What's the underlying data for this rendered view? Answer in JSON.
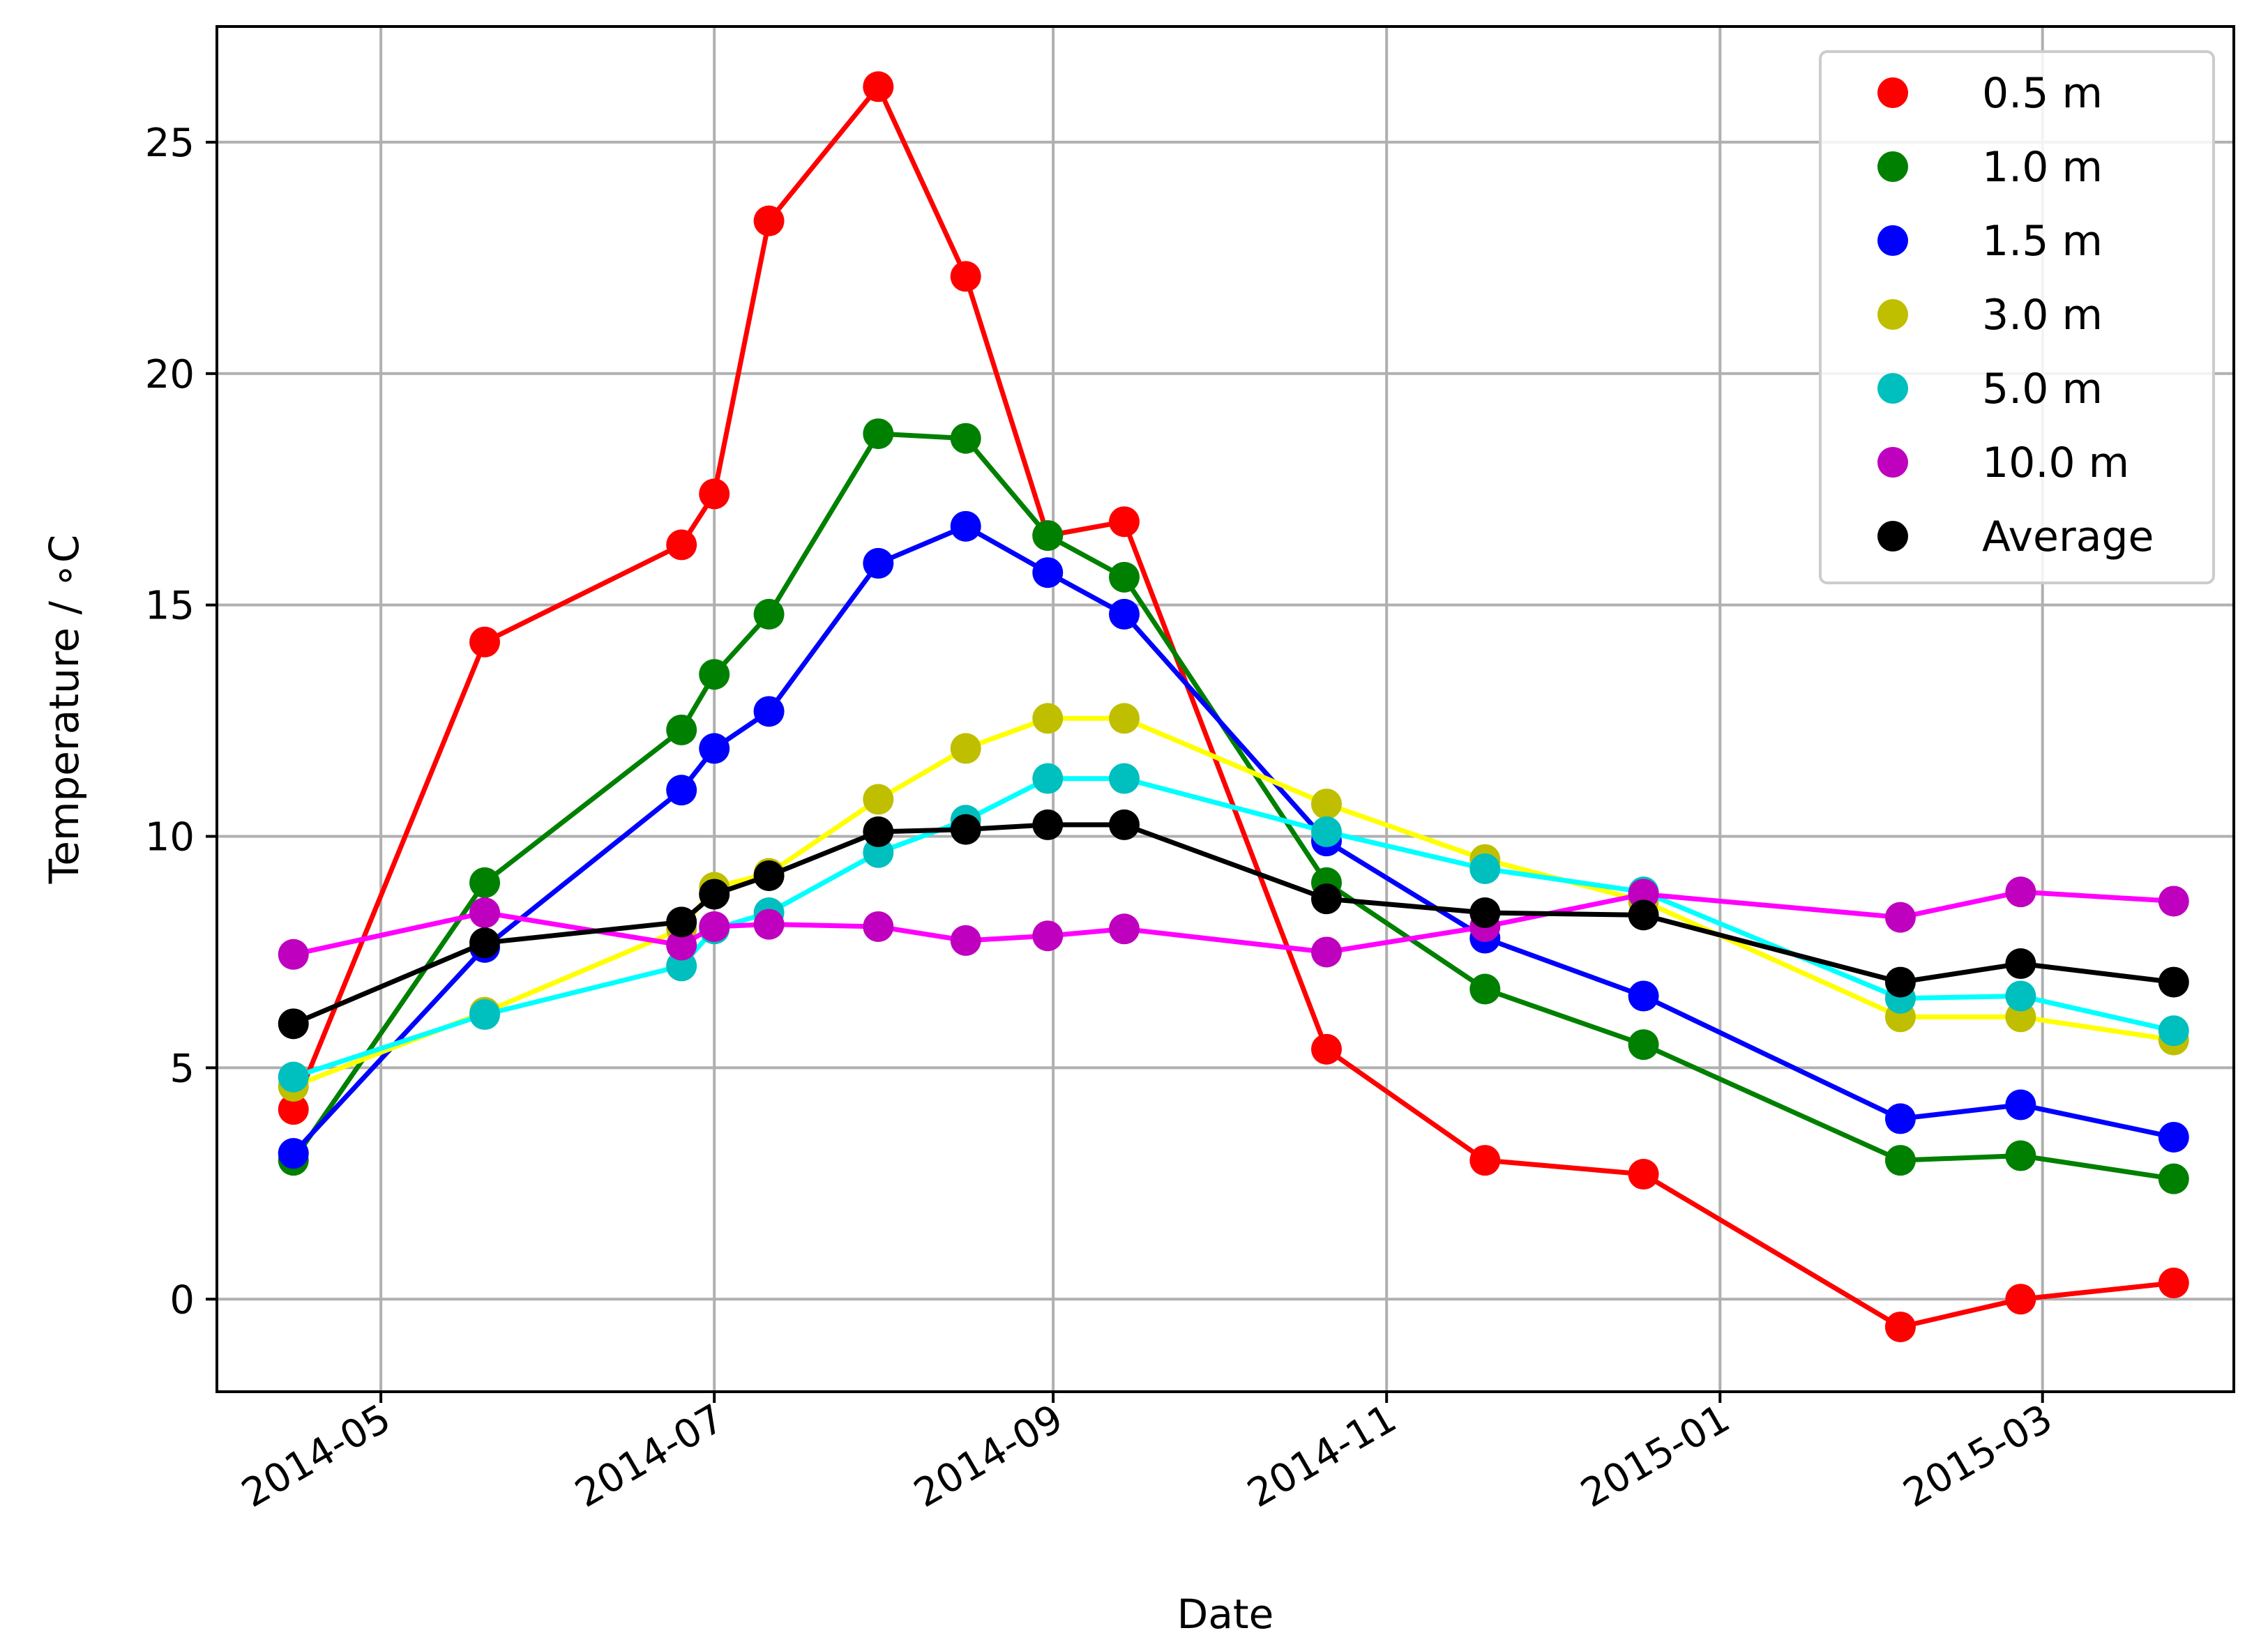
{
  "chart_data": {
    "type": "line",
    "xlabel": "Date",
    "ylabel": "Temperature / ∘C",
    "x_range": [
      "2014-04-01",
      "2015-04-05"
    ],
    "ylim": [
      -2,
      27.5
    ],
    "grid": true,
    "legend_position": "top-right",
    "x_ticks": [
      {
        "date": "2014-05-01",
        "label": "2014-05"
      },
      {
        "date": "2014-07-01",
        "label": "2014-07"
      },
      {
        "date": "2014-09-01",
        "label": "2014-09"
      },
      {
        "date": "2014-11-01",
        "label": "2014-11"
      },
      {
        "date": "2015-01-01",
        "label": "2015-01"
      },
      {
        "date": "2015-03-01",
        "label": "2015-03"
      }
    ],
    "y_ticks": [
      0,
      5,
      10,
      15,
      20,
      25
    ],
    "series": [
      {
        "name": "0.5 m",
        "marker_color": "#ff0000",
        "line_color": "#ff0000",
        "x": [
          "2014-04-15",
          "2014-05-20",
          "2014-06-25",
          "2014-07-01",
          "2014-07-11",
          "2014-07-31",
          "2014-08-16",
          "2014-08-31",
          "2014-09-14",
          "2014-10-21",
          "2014-11-19",
          "2014-12-18",
          "2015-02-03",
          "2015-02-25",
          "2015-03-25"
        ],
        "y": [
          4.1,
          14.2,
          16.3,
          17.4,
          23.3,
          26.2,
          22.1,
          16.5,
          16.8,
          5.4,
          3.0,
          2.7,
          -0.6,
          0.0,
          0.35
        ]
      },
      {
        "name": "1.0 m",
        "marker_color": "#008000",
        "line_color": "#008000",
        "x": [
          "2014-04-15",
          "2014-05-20",
          "2014-06-25",
          "2014-07-01",
          "2014-07-11",
          "2014-07-31",
          "2014-08-16",
          "2014-08-31",
          "2014-09-14",
          "2014-10-21",
          "2014-11-19",
          "2014-12-18",
          "2015-02-03",
          "2015-02-25",
          "2015-03-25"
        ],
        "y": [
          3.0,
          9.0,
          12.3,
          13.5,
          14.8,
          18.7,
          18.6,
          16.5,
          15.6,
          9.0,
          6.7,
          5.5,
          3.0,
          3.1,
          2.6
        ]
      },
      {
        "name": "1.5 m",
        "marker_color": "#0000ff",
        "line_color": "#0000ff",
        "x": [
          "2014-04-15",
          "2014-05-20",
          "2014-06-25",
          "2014-07-01",
          "2014-07-11",
          "2014-07-31",
          "2014-08-16",
          "2014-08-31",
          "2014-09-14",
          "2014-10-21",
          "2014-11-19",
          "2014-12-18",
          "2015-02-03",
          "2015-02-25",
          "2015-03-25"
        ],
        "y": [
          3.15,
          7.6,
          11.0,
          11.9,
          12.7,
          15.9,
          16.7,
          15.7,
          14.8,
          9.9,
          7.8,
          6.55,
          3.9,
          4.2,
          3.5
        ]
      },
      {
        "name": "3.0 m",
        "marker_color": "#bfbf00",
        "line_color": "#ffff00",
        "x": [
          "2014-04-15",
          "2014-05-20",
          "2014-06-25",
          "2014-07-01",
          "2014-07-11",
          "2014-07-31",
          "2014-08-16",
          "2014-08-31",
          "2014-09-14",
          "2014-10-21",
          "2014-11-19",
          "2014-12-18",
          "2015-02-03",
          "2015-02-25",
          "2015-03-25"
        ],
        "y": [
          4.6,
          6.2,
          8.0,
          8.9,
          9.2,
          10.8,
          11.9,
          12.55,
          12.55,
          10.7,
          9.5,
          8.6,
          6.1,
          6.1,
          5.6
        ]
      },
      {
        "name": "5.0 m",
        "marker_color": "#00bfbf",
        "line_color": "#00ffff",
        "x": [
          "2014-04-15",
          "2014-05-20",
          "2014-06-25",
          "2014-07-01",
          "2014-07-11",
          "2014-07-31",
          "2014-08-16",
          "2014-08-31",
          "2014-09-14",
          "2014-10-21",
          "2014-11-19",
          "2014-12-18",
          "2015-02-03",
          "2015-02-25",
          "2015-03-25"
        ],
        "y": [
          4.8,
          6.15,
          7.2,
          8.0,
          8.35,
          9.65,
          10.35,
          11.25,
          11.25,
          10.1,
          9.3,
          8.8,
          6.5,
          6.55,
          5.8
        ]
      },
      {
        "name": "10.0 m",
        "marker_color": "#bf00bf",
        "line_color": "#ff00ff",
        "x": [
          "2014-04-15",
          "2014-05-20",
          "2014-06-25",
          "2014-07-01",
          "2014-07-11",
          "2014-07-31",
          "2014-08-16",
          "2014-08-31",
          "2014-09-14",
          "2014-10-21",
          "2014-11-19",
          "2014-12-18",
          "2015-02-03",
          "2015-02-25",
          "2015-03-25"
        ],
        "y": [
          7.45,
          8.35,
          7.65,
          8.05,
          8.1,
          8.05,
          7.75,
          7.85,
          8.0,
          7.5,
          8.05,
          8.75,
          8.25,
          8.8,
          8.6
        ]
      },
      {
        "name": "Average",
        "marker_color": "#000000",
        "line_color": "#000000",
        "x": [
          "2014-04-15",
          "2014-05-20",
          "2014-06-25",
          "2014-07-01",
          "2014-07-11",
          "2014-07-31",
          "2014-08-16",
          "2014-08-31",
          "2014-09-14",
          "2014-10-21",
          "2014-11-19",
          "2014-12-18",
          "2015-02-03",
          "2015-02-25",
          "2015-03-25"
        ],
        "y": [
          5.95,
          7.7,
          8.15,
          8.75,
          9.15,
          10.1,
          10.15,
          10.25,
          10.25,
          8.65,
          8.35,
          8.3,
          6.85,
          7.25,
          6.85
        ]
      }
    ]
  }
}
